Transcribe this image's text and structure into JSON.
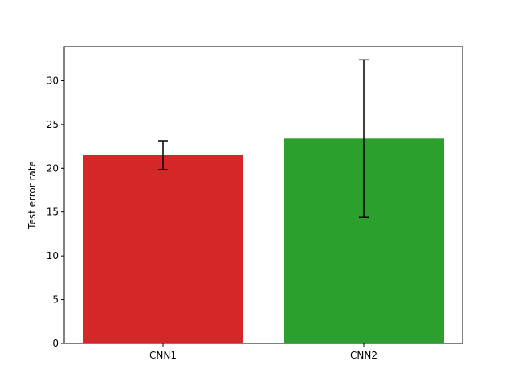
{
  "chart_data": {
    "type": "bar",
    "title": "",
    "xlabel": "",
    "ylabel": "Test error rate",
    "ylim": [
      0,
      33.9
    ],
    "yticks": [
      0,
      5,
      10,
      15,
      20,
      25,
      30
    ],
    "grid": false,
    "categories": [
      "CNN1",
      "CNN2"
    ],
    "values": [
      21.5,
      23.4
    ],
    "errors": [
      1.65,
      9.0
    ],
    "colors": [
      "#d62728",
      "#2ca02c"
    ]
  }
}
